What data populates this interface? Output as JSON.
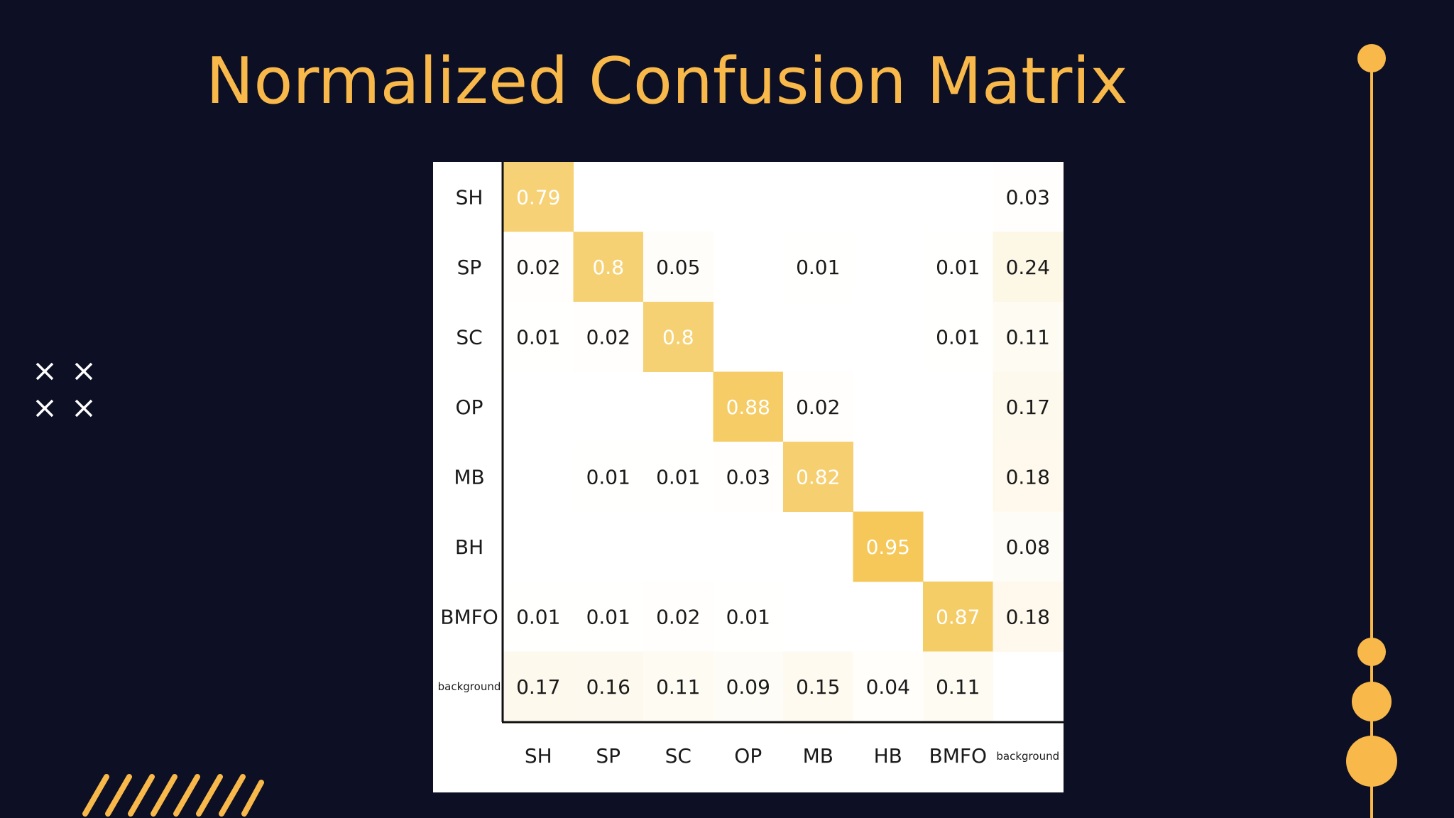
{
  "slide": {
    "title": "Normalized Confusion Matrix"
  },
  "colors": {
    "background": "#0d0f24",
    "accent": "#f8b84a",
    "cell_max": "#f4c550",
    "text_dark": "#1a1a1a",
    "text_light": "#ffffff"
  },
  "decor": {
    "crosses_icon": "cross-icon",
    "stripes_icon": "diagonal-stripes-icon",
    "timeline_icon": "timeline-dots-icon"
  },
  "chart_data": {
    "type": "heatmap",
    "title": "Normalized Confusion Matrix",
    "row_labels": [
      "SH",
      "SP",
      "SC",
      "OP",
      "MB",
      "BH",
      "BMFO",
      "background"
    ],
    "col_labels": [
      "SH",
      "SP",
      "SC",
      "OP",
      "MB",
      "HB",
      "BMFO",
      "background"
    ],
    "values": [
      [
        0.79,
        null,
        null,
        null,
        null,
        null,
        null,
        0.03
      ],
      [
        0.02,
        0.8,
        0.05,
        null,
        0.01,
        null,
        0.01,
        0.24
      ],
      [
        0.01,
        0.02,
        0.8,
        null,
        null,
        null,
        0.01,
        0.11
      ],
      [
        null,
        null,
        null,
        0.88,
        0.02,
        null,
        null,
        0.17
      ],
      [
        null,
        0.01,
        0.01,
        0.03,
        0.82,
        null,
        null,
        0.18
      ],
      [
        null,
        null,
        null,
        null,
        null,
        0.95,
        null,
        0.08
      ],
      [
        0.01,
        0.01,
        0.02,
        0.01,
        null,
        null,
        0.87,
        0.18
      ],
      [
        0.17,
        0.16,
        0.11,
        0.09,
        0.15,
        0.04,
        0.11,
        null
      ]
    ],
    "value_range": [
      0,
      1
    ],
    "colormap": [
      "#ffffff",
      "#f4c550"
    ]
  }
}
